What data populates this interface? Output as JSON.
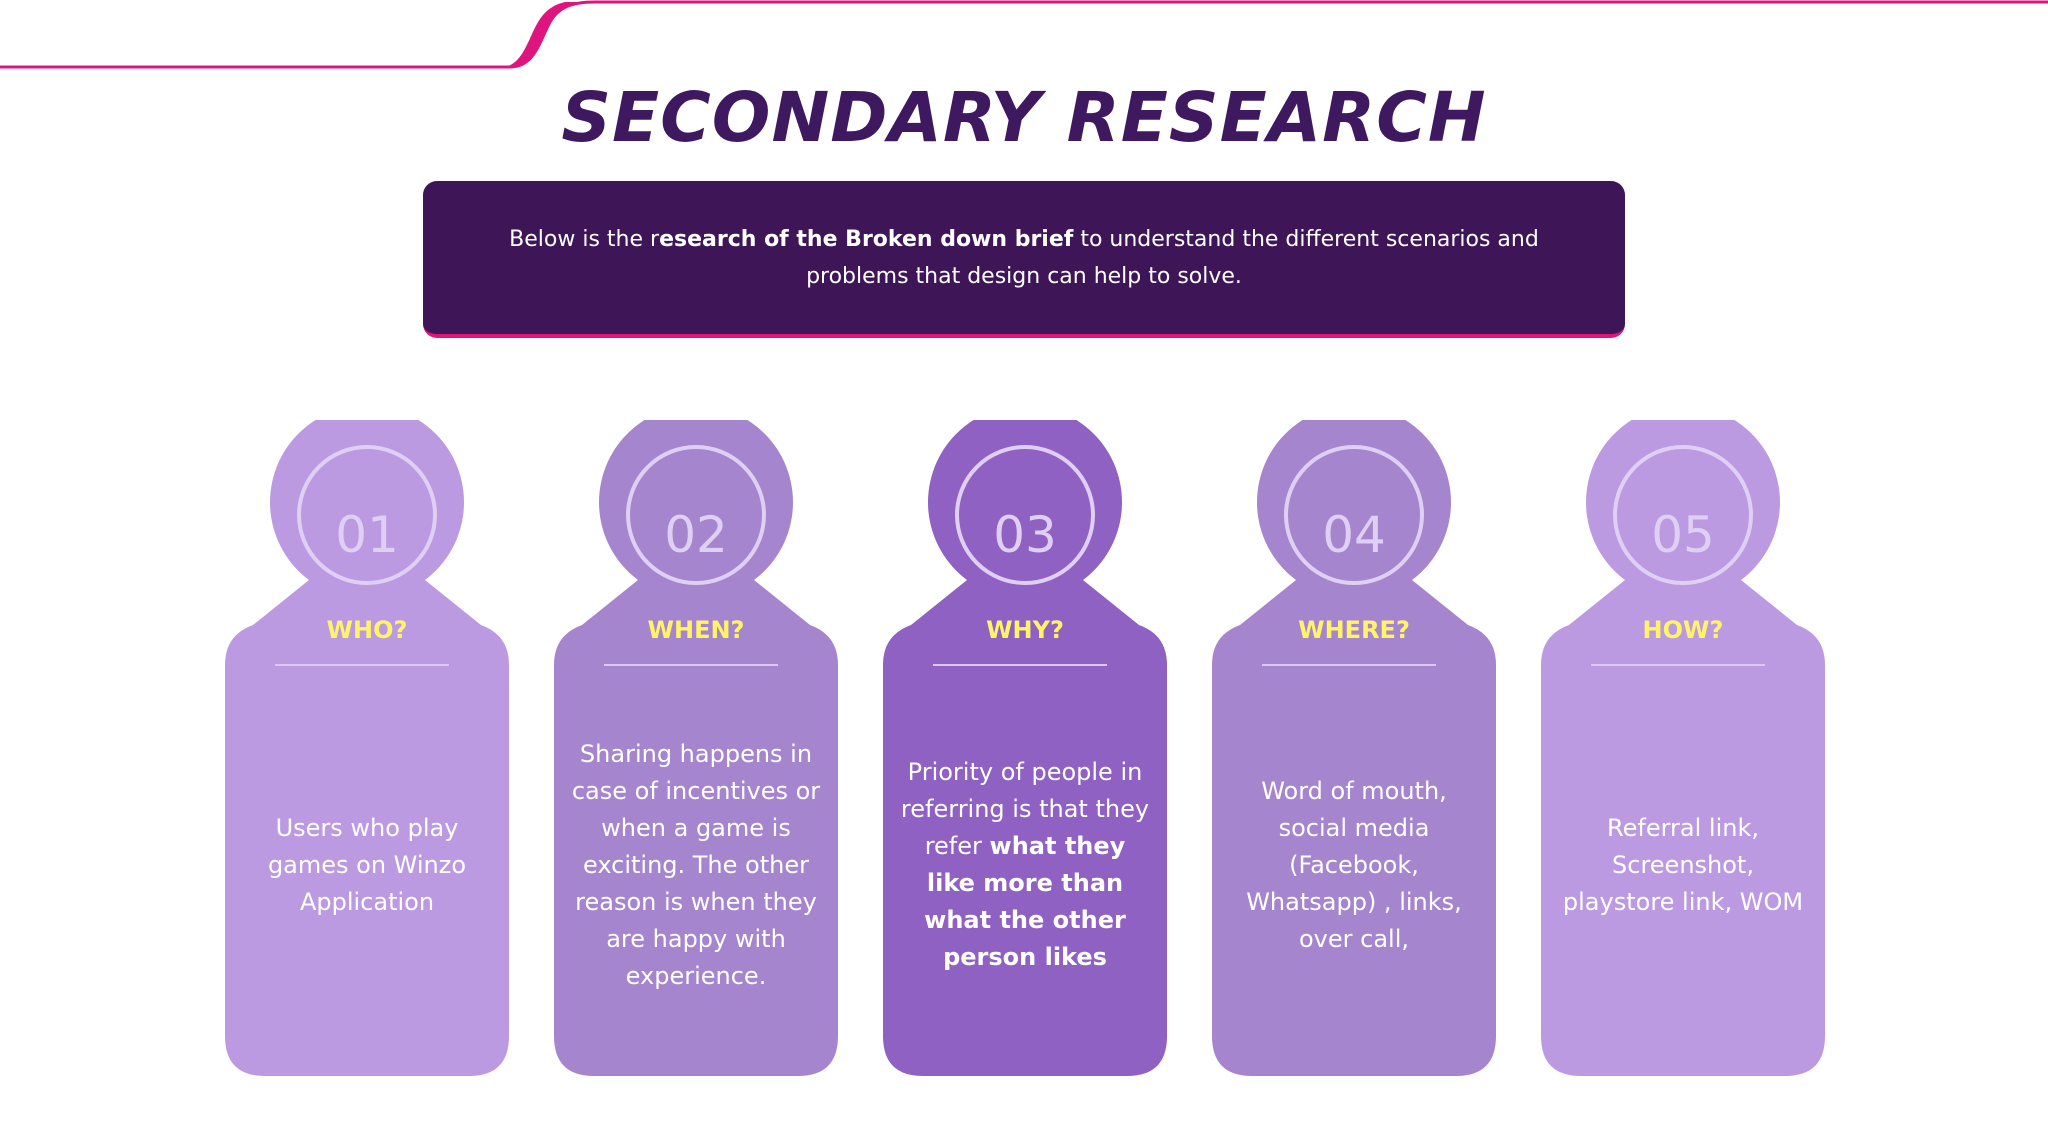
{
  "page_title": "SECONDARY RESEARCH",
  "brief": {
    "text_before": "Below is the r",
    "text_bold": "esearch of the Broken down brief",
    "text_after": " to understand the different scenarios and problems that design can help to solve."
  },
  "cards": [
    {
      "number": "01",
      "question": "WHO?",
      "body_before": "Users who play games on Winzo Application",
      "body_bold": "",
      "color": "#bb9ae2"
    },
    {
      "number": "02",
      "question": "WHEN?",
      "body_before": "Sharing happens in case of incentives or when a game is exciting. The other reason is when they are happy with experience.",
      "body_bold": "",
      "color": "#a585cd"
    },
    {
      "number": "03",
      "question": "WHY?",
      "body_before": "Priority of people in referring is that they refer ",
      "body_bold": "what they like more than what the other person likes",
      "color": "#8e61c2"
    },
    {
      "number": "04",
      "question": "WHERE?",
      "body_before": "Word of mouth, social media (Facebook, Whatsapp) , links, over call,",
      "body_bold": "",
      "color": "#a585cd"
    },
    {
      "number": "05",
      "question": "HOW?",
      "body_before": "Referral link, Screenshot, playstore link, WOM",
      "body_bold": "",
      "color": "#bb9ae2"
    }
  ],
  "colors": {
    "accent": "#e0147f",
    "title": "#3f1960",
    "brief_bg": "#3e1658",
    "question_text": "#fff36a"
  }
}
